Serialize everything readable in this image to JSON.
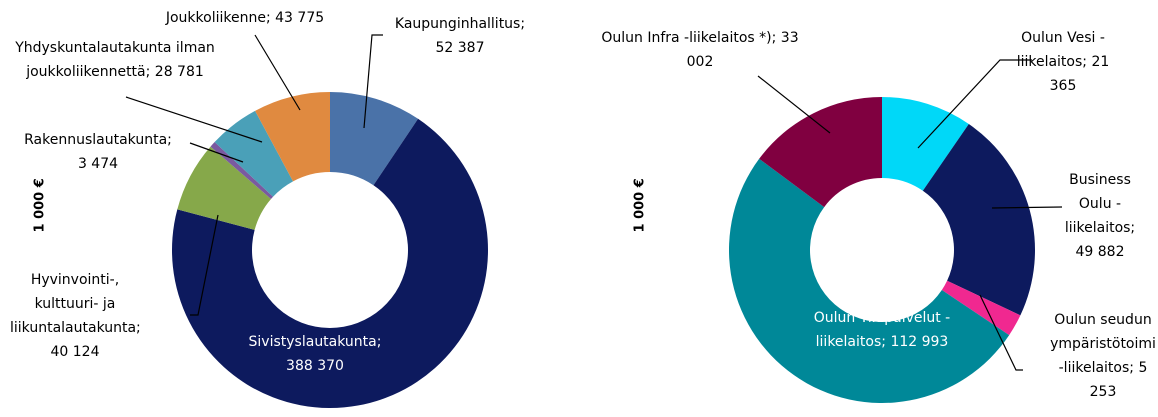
{
  "chart_data": [
    {
      "type": "donut",
      "y_label": "1 000 €",
      "categories": [
        "Kaupunginhallitus;",
        "Sivistyslautakunta;",
        "Hyvinvointi-, kulttuuri- ja liikuntalautakunta;",
        "Rakennuslautakunta;",
        "Yhdyskuntalautakunta ilman joukkoliikennettä;",
        "Joukkoliikenne;"
      ],
      "values": [
        52387,
        388370,
        40124,
        3474,
        28781,
        43775
      ],
      "value_labels": [
        "52 387",
        "388 370",
        "40 124",
        "3 474",
        "28 781",
        "43 775"
      ],
      "colors": [
        "#4a72a8",
        "#0d1a5e",
        "#86a84a",
        "#7a5aa0",
        "#4aa0b8",
        "#e08a40"
      ]
    },
    {
      "type": "donut",
      "y_label": "1 000 €",
      "categories": [
        "Oulun Vesi - liikelaitos;",
        "Business Oulu - liikelaitos;",
        "Oulun seudun ympäristötoimi -liikelaitos;",
        "Oulun Tilapalvelut - liikelaitos;",
        "Oulun Infra -liikelaitos *);"
      ],
      "values": [
        21365,
        49882,
        5253,
        112993,
        33002
      ],
      "value_labels": [
        "21 365",
        "49 882",
        "5 253",
        "112 993",
        "33 002"
      ],
      "colors": [
        "#00d8f8",
        "#0d1a5e",
        "#f02890",
        "#008898",
        "#800040"
      ]
    }
  ]
}
